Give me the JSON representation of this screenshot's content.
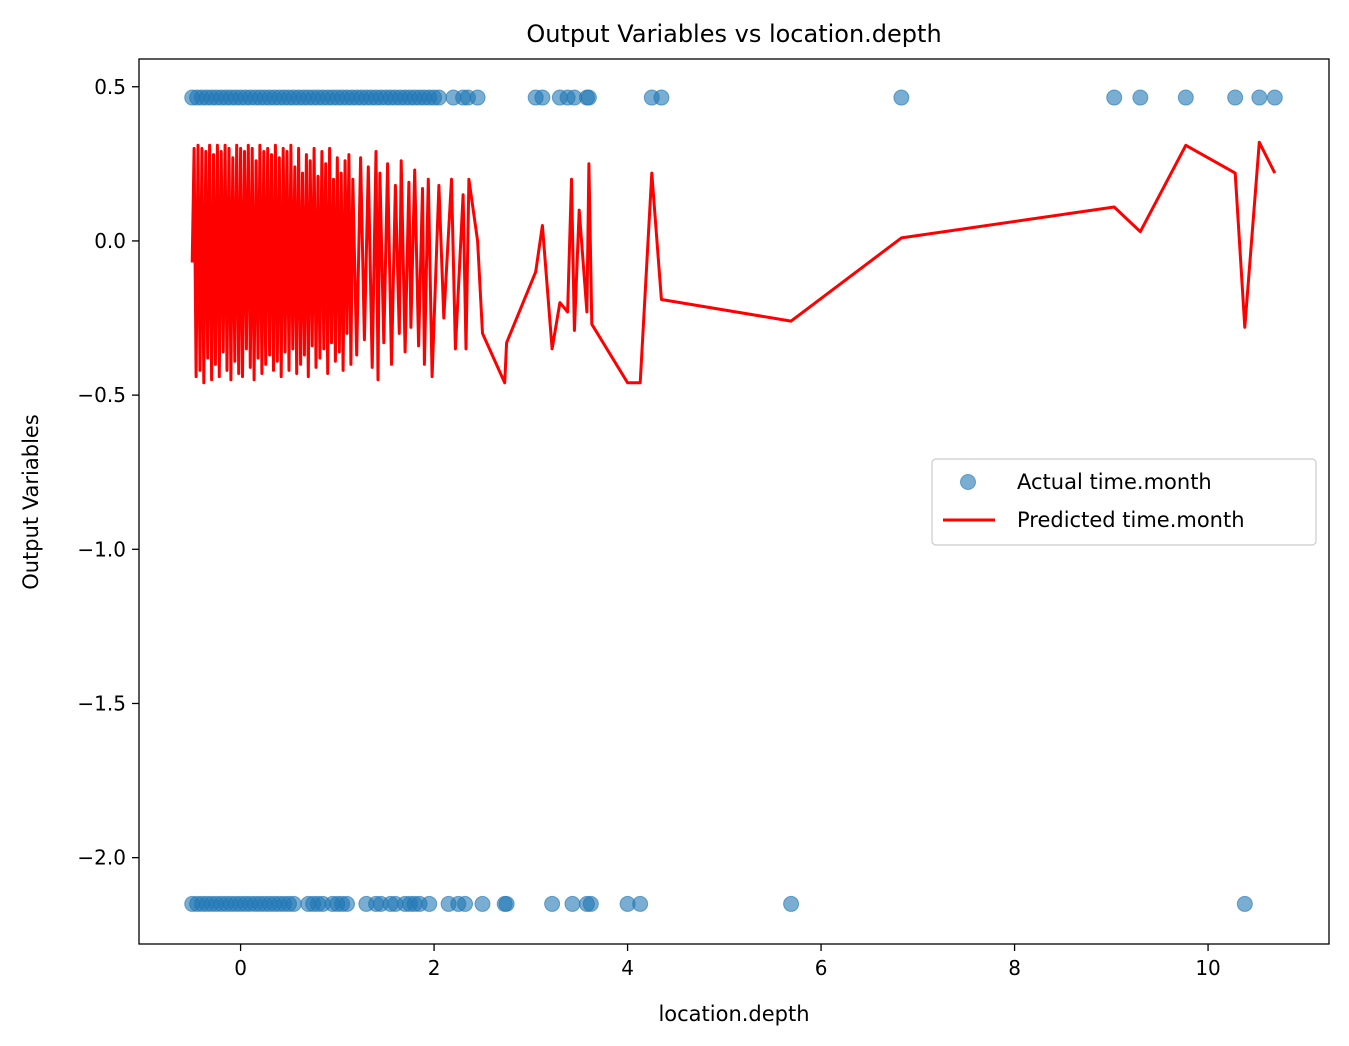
{
  "chart_data": {
    "type": "scatter",
    "title": "Output Variables vs location.depth",
    "xlabel": "location.depth",
    "ylabel": "Output Variables",
    "xlim": [
      -1.05,
      11.25
    ],
    "ylim": [
      -2.28,
      0.59
    ],
    "xticks": [
      0,
      2,
      4,
      6,
      8,
      10
    ],
    "xtick_labels": [
      "0",
      "2",
      "4",
      "6",
      "8",
      "10"
    ],
    "yticks": [
      0.5,
      0.0,
      -0.5,
      -1.0,
      -1.5,
      -2.0
    ],
    "ytick_labels": [
      "0.5",
      "0.0",
      "−0.5",
      "−1.0",
      "−1.5",
      "−2.0"
    ],
    "grid": false,
    "legend_position": "center-right",
    "series": [
      {
        "name": "Actual time.month",
        "kind": "scatter",
        "color": "#1f77b4",
        "alpha": 0.6,
        "points": [
          [
            -0.5,
            0.465
          ],
          [
            -0.45,
            0.465
          ],
          [
            -0.4,
            0.465
          ],
          [
            -0.35,
            0.465
          ],
          [
            -0.3,
            0.465
          ],
          [
            -0.25,
            0.465
          ],
          [
            -0.2,
            0.465
          ],
          [
            -0.15,
            0.465
          ],
          [
            -0.1,
            0.465
          ],
          [
            -0.05,
            0.465
          ],
          [
            0.0,
            0.465
          ],
          [
            0.05,
            0.465
          ],
          [
            0.1,
            0.465
          ],
          [
            0.15,
            0.465
          ],
          [
            0.2,
            0.465
          ],
          [
            0.25,
            0.465
          ],
          [
            0.3,
            0.465
          ],
          [
            0.35,
            0.465
          ],
          [
            0.4,
            0.465
          ],
          [
            0.45,
            0.465
          ],
          [
            0.5,
            0.465
          ],
          [
            0.55,
            0.465
          ],
          [
            0.6,
            0.465
          ],
          [
            0.65,
            0.465
          ],
          [
            0.7,
            0.465
          ],
          [
            0.75,
            0.465
          ],
          [
            0.8,
            0.465
          ],
          [
            0.85,
            0.465
          ],
          [
            0.9,
            0.465
          ],
          [
            0.95,
            0.465
          ],
          [
            1.0,
            0.465
          ],
          [
            1.05,
            0.465
          ],
          [
            1.1,
            0.465
          ],
          [
            1.15,
            0.465
          ],
          [
            1.2,
            0.465
          ],
          [
            1.25,
            0.465
          ],
          [
            1.3,
            0.465
          ],
          [
            1.35,
            0.465
          ],
          [
            1.4,
            0.465
          ],
          [
            1.45,
            0.465
          ],
          [
            1.5,
            0.465
          ],
          [
            1.55,
            0.465
          ],
          [
            1.6,
            0.465
          ],
          [
            1.65,
            0.465
          ],
          [
            1.7,
            0.465
          ],
          [
            1.75,
            0.465
          ],
          [
            1.8,
            0.465
          ],
          [
            1.85,
            0.465
          ],
          [
            1.9,
            0.465
          ],
          [
            1.95,
            0.465
          ],
          [
            2.0,
            0.465
          ],
          [
            2.05,
            0.465
          ],
          [
            2.2,
            0.465
          ],
          [
            2.3,
            0.465
          ],
          [
            2.35,
            0.465
          ],
          [
            2.45,
            0.465
          ],
          [
            3.05,
            0.465
          ],
          [
            3.12,
            0.465
          ],
          [
            3.3,
            0.465
          ],
          [
            3.38,
            0.465
          ],
          [
            3.45,
            0.465
          ],
          [
            3.58,
            0.465
          ],
          [
            3.6,
            0.465
          ],
          [
            4.25,
            0.465
          ],
          [
            4.35,
            0.465
          ],
          [
            6.83,
            0.465
          ],
          [
            9.03,
            0.465
          ],
          [
            9.3,
            0.465
          ],
          [
            9.77,
            0.465
          ],
          [
            10.28,
            0.465
          ],
          [
            10.53,
            0.465
          ],
          [
            10.69,
            0.465
          ],
          [
            -0.5,
            -2.15
          ],
          [
            -0.45,
            -2.15
          ],
          [
            -0.4,
            -2.15
          ],
          [
            -0.35,
            -2.15
          ],
          [
            -0.3,
            -2.15
          ],
          [
            -0.25,
            -2.15
          ],
          [
            -0.2,
            -2.15
          ],
          [
            -0.15,
            -2.15
          ],
          [
            -0.1,
            -2.15
          ],
          [
            -0.05,
            -2.15
          ],
          [
            0.0,
            -2.15
          ],
          [
            0.05,
            -2.15
          ],
          [
            0.1,
            -2.15
          ],
          [
            0.15,
            -2.15
          ],
          [
            0.2,
            -2.15
          ],
          [
            0.25,
            -2.15
          ],
          [
            0.3,
            -2.15
          ],
          [
            0.35,
            -2.15
          ],
          [
            0.4,
            -2.15
          ],
          [
            0.45,
            -2.15
          ],
          [
            0.5,
            -2.15
          ],
          [
            0.55,
            -2.15
          ],
          [
            0.7,
            -2.15
          ],
          [
            0.75,
            -2.15
          ],
          [
            0.8,
            -2.15
          ],
          [
            0.85,
            -2.15
          ],
          [
            0.95,
            -2.15
          ],
          [
            1.0,
            -2.15
          ],
          [
            1.05,
            -2.15
          ],
          [
            1.1,
            -2.15
          ],
          [
            1.3,
            -2.15
          ],
          [
            1.4,
            -2.15
          ],
          [
            1.45,
            -2.15
          ],
          [
            1.55,
            -2.15
          ],
          [
            1.6,
            -2.15
          ],
          [
            1.7,
            -2.15
          ],
          [
            1.75,
            -2.15
          ],
          [
            1.8,
            -2.15
          ],
          [
            1.85,
            -2.15
          ],
          [
            1.95,
            -2.15
          ],
          [
            2.15,
            -2.15
          ],
          [
            2.25,
            -2.15
          ],
          [
            2.32,
            -2.15
          ],
          [
            2.5,
            -2.15
          ],
          [
            2.73,
            -2.15
          ],
          [
            2.75,
            -2.15
          ],
          [
            3.22,
            -2.15
          ],
          [
            3.43,
            -2.15
          ],
          [
            3.58,
            -2.15
          ],
          [
            3.62,
            -2.15
          ],
          [
            4.0,
            -2.15
          ],
          [
            4.13,
            -2.15
          ],
          [
            5.69,
            -2.15
          ],
          [
            10.38,
            -2.15
          ]
        ]
      },
      {
        "name": "Predicted time.month",
        "kind": "line",
        "color": "#ff0000",
        "x": [
          -0.5,
          -0.48,
          -0.46,
          -0.44,
          -0.42,
          -0.4,
          -0.38,
          -0.36,
          -0.34,
          -0.32,
          -0.3,
          -0.28,
          -0.26,
          -0.24,
          -0.22,
          -0.2,
          -0.18,
          -0.16,
          -0.14,
          -0.12,
          -0.1,
          -0.08,
          -0.06,
          -0.04,
          -0.02,
          0.0,
          0.02,
          0.04,
          0.06,
          0.08,
          0.1,
          0.12,
          0.14,
          0.16,
          0.18,
          0.2,
          0.22,
          0.24,
          0.26,
          0.28,
          0.3,
          0.32,
          0.34,
          0.36,
          0.38,
          0.4,
          0.42,
          0.44,
          0.46,
          0.48,
          0.5,
          0.52,
          0.54,
          0.56,
          0.58,
          0.6,
          0.62,
          0.64,
          0.66,
          0.68,
          0.7,
          0.72,
          0.74,
          0.76,
          0.78,
          0.8,
          0.82,
          0.84,
          0.86,
          0.88,
          0.9,
          0.92,
          0.94,
          0.96,
          0.98,
          1.0,
          1.02,
          1.04,
          1.06,
          1.08,
          1.1,
          1.12,
          1.14,
          1.16,
          1.2,
          1.24,
          1.28,
          1.32,
          1.36,
          1.4,
          1.42,
          1.44,
          1.48,
          1.52,
          1.56,
          1.6,
          1.64,
          1.66,
          1.7,
          1.74,
          1.76,
          1.8,
          1.84,
          1.88,
          1.9,
          1.94,
          1.98,
          2.05,
          2.1,
          2.18,
          2.22,
          2.3,
          2.33,
          2.36,
          2.45,
          2.5,
          2.73,
          2.75,
          3.05,
          3.12,
          3.22,
          3.3,
          3.38,
          3.42,
          3.45,
          3.5,
          3.58,
          3.6,
          3.63,
          4.0,
          4.13,
          4.25,
          4.35,
          5.69,
          6.83,
          9.03,
          9.3,
          9.77,
          10.28,
          10.38,
          10.53,
          10.69
        ],
        "y": [
          -0.07,
          0.3,
          -0.44,
          0.31,
          -0.42,
          0.3,
          -0.46,
          0.29,
          -0.38,
          0.31,
          -0.45,
          0.28,
          -0.4,
          0.31,
          -0.44,
          0.29,
          -0.36,
          0.31,
          -0.42,
          0.3,
          -0.45,
          0.27,
          -0.39,
          0.31,
          -0.43,
          0.3,
          -0.44,
          0.29,
          -0.35,
          0.31,
          -0.41,
          0.3,
          -0.45,
          0.26,
          -0.38,
          0.31,
          -0.43,
          0.29,
          -0.4,
          0.3,
          -0.37,
          0.28,
          -0.42,
          0.31,
          -0.39,
          0.27,
          -0.44,
          0.3,
          -0.36,
          0.29,
          -0.42,
          0.31,
          -0.35,
          0.24,
          -0.43,
          0.3,
          -0.4,
          0.22,
          -0.37,
          0.28,
          -0.44,
          0.26,
          -0.34,
          0.3,
          -0.41,
          0.21,
          -0.38,
          0.29,
          -0.35,
          0.25,
          -0.43,
          0.3,
          -0.33,
          0.2,
          -0.39,
          0.27,
          -0.36,
          0.22,
          -0.42,
          0.26,
          -0.3,
          0.28,
          -0.4,
          0.2,
          -0.37,
          0.27,
          -0.32,
          0.24,
          -0.41,
          0.29,
          -0.45,
          0.22,
          -0.33,
          0.25,
          -0.4,
          0.18,
          -0.3,
          0.26,
          -0.36,
          0.19,
          -0.28,
          0.23,
          -0.34,
          0.17,
          -0.4,
          0.2,
          -0.44,
          0.18,
          -0.25,
          0.2,
          -0.35,
          0.15,
          -0.35,
          0.2,
          0.0,
          -0.3,
          -0.46,
          -0.33,
          -0.1,
          0.05,
          -0.35,
          -0.2,
          -0.23,
          0.2,
          -0.29,
          0.1,
          -0.23,
          0.25,
          -0.27,
          -0.46,
          -0.46,
          0.22,
          -0.19,
          -0.26,
          0.01,
          0.11,
          0.03,
          0.31,
          0.22,
          -0.28,
          0.32,
          0.22
        ]
      }
    ]
  }
}
